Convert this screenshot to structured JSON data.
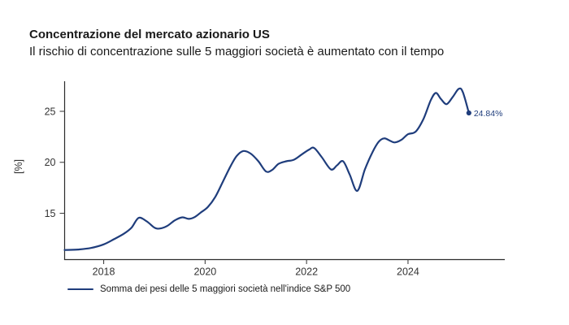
{
  "header": {
    "title": "Concentrazione del mercato azionario US",
    "subtitle": "Il rischio di concentrazione sulle 5 maggiori società è aumentato con il tempo"
  },
  "colors": {
    "line": "#1f3d7c",
    "axis": "#2b2b2b",
    "tick": "#444444",
    "tick_text": "#333333",
    "text": "#1a1a1a"
  },
  "chart_data": {
    "type": "line",
    "title": "Concentrazione del mercato azionario US",
    "subtitle": "Il rischio di concentrazione sulle 5 maggiori società è aumentato con il tempo",
    "xlabel": "",
    "ylabel": "[%]",
    "x_ticks": [
      2018,
      2020,
      2022,
      2024
    ],
    "y_ticks": [
      15,
      20,
      25
    ],
    "x_range": [
      2017.23,
      2025.92
    ],
    "y_range": [
      10.5,
      27.9
    ],
    "grid": false,
    "legend_position": "bottom-left",
    "series": [
      {
        "name": "Somma dei pesi delle 5 maggiori società nell'indice S&P 500",
        "color": "#1f3d7c",
        "end_label": "24.84%",
        "end_value": 24.84,
        "points": [
          [
            2017.23,
            11.4
          ],
          [
            2017.5,
            11.45
          ],
          [
            2017.75,
            11.6
          ],
          [
            2018.0,
            11.95
          ],
          [
            2018.2,
            12.45
          ],
          [
            2018.4,
            13.0
          ],
          [
            2018.55,
            13.6
          ],
          [
            2018.69,
            14.55
          ],
          [
            2018.85,
            14.2
          ],
          [
            2019.0,
            13.6
          ],
          [
            2019.1,
            13.5
          ],
          [
            2019.25,
            13.75
          ],
          [
            2019.4,
            14.3
          ],
          [
            2019.55,
            14.6
          ],
          [
            2019.68,
            14.45
          ],
          [
            2019.8,
            14.65
          ],
          [
            2019.92,
            15.1
          ],
          [
            2020.05,
            15.6
          ],
          [
            2020.2,
            16.6
          ],
          [
            2020.35,
            18.1
          ],
          [
            2020.5,
            19.6
          ],
          [
            2020.62,
            20.6
          ],
          [
            2020.75,
            21.1
          ],
          [
            2020.9,
            20.85
          ],
          [
            2021.05,
            20.1
          ],
          [
            2021.2,
            19.1
          ],
          [
            2021.32,
            19.25
          ],
          [
            2021.45,
            19.85
          ],
          [
            2021.6,
            20.1
          ],
          [
            2021.75,
            20.25
          ],
          [
            2021.9,
            20.75
          ],
          [
            2022.05,
            21.25
          ],
          [
            2022.15,
            21.4
          ],
          [
            2022.3,
            20.5
          ],
          [
            2022.48,
            19.3
          ],
          [
            2022.6,
            19.7
          ],
          [
            2022.72,
            20.1
          ],
          [
            2022.85,
            18.8
          ],
          [
            2023.0,
            17.2
          ],
          [
            2023.15,
            19.3
          ],
          [
            2023.3,
            21.0
          ],
          [
            2023.42,
            22.0
          ],
          [
            2023.53,
            22.35
          ],
          [
            2023.65,
            22.1
          ],
          [
            2023.74,
            21.95
          ],
          [
            2023.87,
            22.2
          ],
          [
            2024.0,
            22.75
          ],
          [
            2024.15,
            23.0
          ],
          [
            2024.3,
            24.2
          ],
          [
            2024.45,
            26.1
          ],
          [
            2024.55,
            26.8
          ],
          [
            2024.65,
            26.2
          ],
          [
            2024.76,
            25.7
          ],
          [
            2024.88,
            26.4
          ],
          [
            2025.0,
            27.2
          ],
          [
            2025.08,
            26.9
          ],
          [
            2025.2,
            24.84
          ]
        ]
      }
    ]
  }
}
